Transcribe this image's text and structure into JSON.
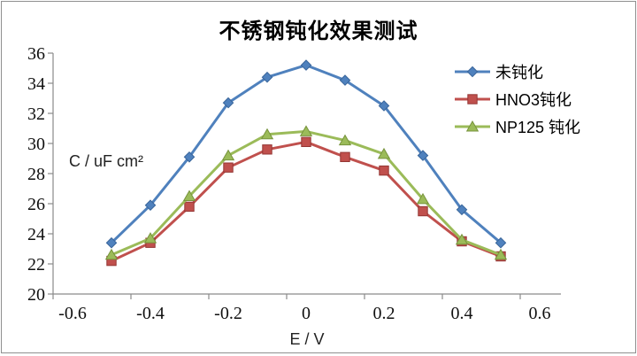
{
  "window": {
    "background": "#ffffff",
    "border_color": "#8f8f8f"
  },
  "chart_data": {
    "type": "line",
    "title": "不锈钢钝化效果测试",
    "xlabel": "E / V",
    "ylabel": "C / uF cm²",
    "x": [
      -0.5,
      -0.4,
      -0.3,
      -0.2,
      -0.1,
      0,
      0.1,
      0.2,
      0.3,
      0.4,
      0.5
    ],
    "series": [
      {
        "name": "未钝化",
        "color": "#4F81BD",
        "edge_color": "#39659a",
        "marker": "diamond",
        "values": [
          23.4,
          25.9,
          29.1,
          32.7,
          34.4,
          35.2,
          34.2,
          32.5,
          29.2,
          25.6,
          23.4
        ]
      },
      {
        "name": "HNO3钝化",
        "color": "#C0504D",
        "edge_color": "#943634",
        "marker": "square",
        "values": [
          22.2,
          23.4,
          25.8,
          28.4,
          29.6,
          30.1,
          29.1,
          28.2,
          25.5,
          23.5,
          22.5
        ]
      },
      {
        "name": "NP125 钝化",
        "color": "#9BBB59",
        "edge_color": "#77933C",
        "marker": "triangle",
        "values": [
          22.6,
          23.7,
          26.5,
          29.2,
          30.6,
          30.8,
          30.2,
          29.3,
          26.3,
          23.6,
          22.6
        ]
      }
    ],
    "x_tick_labels": [
      "-0.6",
      "-0.4",
      "-0.2",
      "0",
      "0.2",
      "0.4",
      "0.6"
    ],
    "y_ticks": [
      20,
      22,
      24,
      26,
      28,
      30,
      32,
      34,
      36
    ],
    "axis": {
      "xlim": [
        -0.65,
        0.65
      ],
      "ylim": [
        20,
        36
      ],
      "x_tick_boundary_shift": -0.05,
      "grid": false,
      "axis_color": "#8a8a8a",
      "legend_position": "right"
    }
  }
}
